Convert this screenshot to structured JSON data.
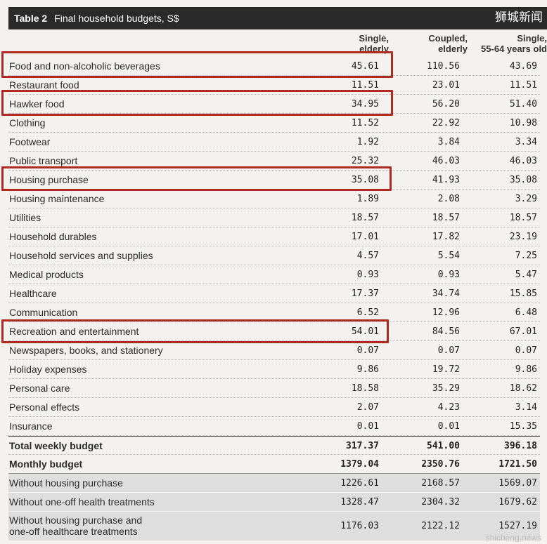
{
  "title": {
    "number": "Table 2",
    "text": "Final household budgets, S$"
  },
  "watermark_top": "狮城新闻",
  "watermark_bottom": "shicheng.news",
  "columns": [
    {
      "line1": "Single,",
      "line2": "elderly"
    },
    {
      "line1": "Coupled,",
      "line2": "elderly"
    },
    {
      "line1": "Single,",
      "line2": "55-64 years old"
    }
  ],
  "rows": [
    {
      "label": "Food and non-alcoholic beverages",
      "v": [
        "45.61",
        "110.56",
        "43.69"
      ]
    },
    {
      "label": "Restaurant food",
      "v": [
        "11.51",
        "23.01",
        "11.51"
      ]
    },
    {
      "label": "Hawker food",
      "v": [
        "34.95",
        "56.20",
        "51.40"
      ]
    },
    {
      "label": "Clothing",
      "v": [
        "11.52",
        "22.92",
        "10.98"
      ]
    },
    {
      "label": "Footwear",
      "v": [
        "1.92",
        "3.84",
        "3.34"
      ]
    },
    {
      "label": "Public transport",
      "v": [
        "25.32",
        "46.03",
        "46.03"
      ]
    },
    {
      "label": "Housing purchase",
      "v": [
        "35.08",
        "41.93",
        "35.08"
      ]
    },
    {
      "label": "Housing maintenance",
      "v": [
        "1.89",
        "2.08",
        "3.29"
      ]
    },
    {
      "label": "Utilities",
      "v": [
        "18.57",
        "18.57",
        "18.57"
      ]
    },
    {
      "label": "Household durables",
      "v": [
        "17.01",
        "17.82",
        "23.19"
      ]
    },
    {
      "label": "Household services and supplies",
      "v": [
        "4.57",
        "5.54",
        "7.25"
      ]
    },
    {
      "label": "Medical products",
      "v": [
        "0.93",
        "0.93",
        "5.47"
      ]
    },
    {
      "label": "Healthcare",
      "v": [
        "17.37",
        "34.74",
        "15.85"
      ]
    },
    {
      "label": "Communication",
      "v": [
        "6.52",
        "12.96",
        "6.48"
      ]
    },
    {
      "label": "Recreation and entertainment",
      "v": [
        "54.01",
        "84.56",
        "67.01"
      ]
    },
    {
      "label": "Newspapers, books, and stationery",
      "v": [
        "0.07",
        "0.07",
        "0.07"
      ]
    },
    {
      "label": "Holiday expenses",
      "v": [
        "9.86",
        "19.72",
        "9.86"
      ]
    },
    {
      "label": "Personal care",
      "v": [
        "18.58",
        "35.29",
        "18.62"
      ]
    },
    {
      "label": "Personal effects",
      "v": [
        "2.07",
        "4.23",
        "3.14"
      ]
    },
    {
      "label": "Insurance",
      "v": [
        "0.01",
        "0.01",
        "15.35"
      ]
    }
  ],
  "total": {
    "label": "Total weekly budget",
    "v": [
      "317.37",
      "541.00",
      "396.18"
    ]
  },
  "monthly": {
    "label": "Monthly budget",
    "v": [
      "1379.04",
      "2350.76",
      "1721.50"
    ]
  },
  "variants": [
    {
      "label": "Without housing purchase",
      "v": [
        "1226.61",
        "2168.57",
        "1569.07"
      ]
    },
    {
      "label": "Without one-off health treatments",
      "v": [
        "1328.47",
        "2304.32",
        "1679.62"
      ]
    },
    {
      "label_line1": "Without housing purchase and",
      "label_line2": "one-off healthcare treatments",
      "v": [
        "1176.03",
        "2122.12",
        "1527.19"
      ]
    }
  ],
  "highlight_color": "#b02a24"
}
